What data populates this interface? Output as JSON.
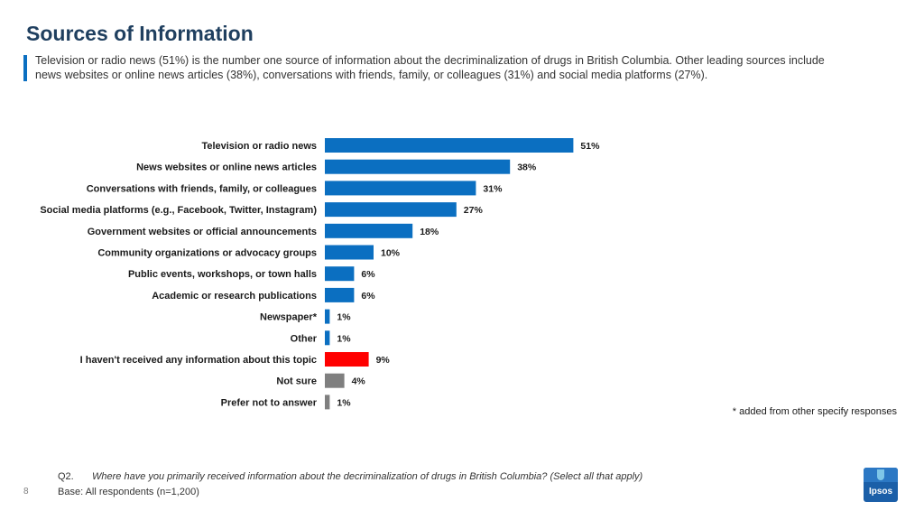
{
  "header": {
    "title": "Sources of Information",
    "subtitle": "Television or radio news (51%) is the number one source of information about the decriminalization of drugs in British Columbia. Other leading sources include news websites or online news articles (38%), conversations with friends, family, or colleagues (31%) and social media platforms (27%)."
  },
  "chart_data": {
    "type": "bar",
    "orientation": "horizontal",
    "title": "",
    "xlabel": "",
    "ylabel": "",
    "xlim": [
      0,
      60
    ],
    "unit": "%",
    "categories": [
      "Television or radio news",
      "News websites or online news articles",
      "Conversations with friends, family, or colleagues",
      "Social media platforms (e.g., Facebook, Twitter, Instagram)",
      "Government websites or official announcements",
      "Community organizations or advocacy groups",
      "Public events, workshops, or town halls",
      "Academic or research publications",
      "Newspaper*",
      "Other",
      "I haven't received any information about this topic",
      "Not sure",
      "Prefer not to answer"
    ],
    "values": [
      51,
      38,
      31,
      27,
      18,
      10,
      6,
      6,
      1,
      1,
      9,
      4,
      1
    ],
    "value_labels": [
      "51%",
      "38%",
      "31%",
      "27%",
      "18%",
      "10%",
      "6%",
      "6%",
      "1%",
      "1%",
      "9%",
      "4%",
      "1%"
    ],
    "colors": [
      "#0b6fc1",
      "#0b6fc1",
      "#0b6fc1",
      "#0b6fc1",
      "#0b6fc1",
      "#0b6fc1",
      "#0b6fc1",
      "#0b6fc1",
      "#0b6fc1",
      "#0b6fc1",
      "#ff0000",
      "#7f7f7f",
      "#7f7f7f"
    ]
  },
  "footnote": "* added from other specify responses",
  "footer": {
    "question_number": "Q2.",
    "question_text": "Where have you primarily received information about the decriminalization of drugs in British Columbia? (Select all that apply)",
    "base": "Base: All respondents (n=1,200)",
    "page_number": "8",
    "logo_text": "Ipsos"
  },
  "colors": {
    "primary_bar": "#0b6fc1",
    "highlight_bar": "#ff0000",
    "neutral_bar": "#7f7f7f",
    "title": "#1f3f5f"
  }
}
